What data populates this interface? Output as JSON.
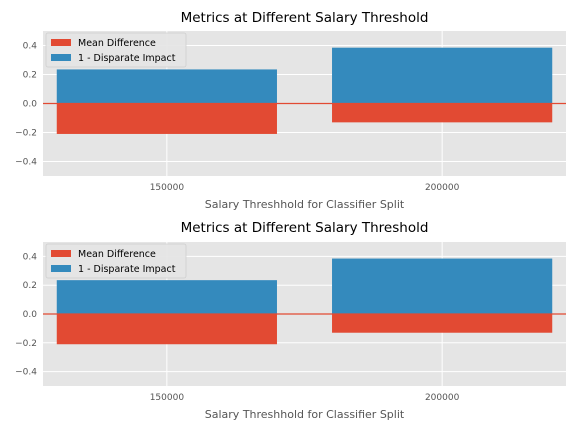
{
  "colors": {
    "background": "#ffffff",
    "plot_background": "#e5e5e5",
    "grid": "#ffffff",
    "zero_line": "#e24a33",
    "series_mean_difference": "#e24a33",
    "series_disparate_impact": "#348abd"
  },
  "chart_data": [
    {
      "type": "bar",
      "title": "Metrics at Different Salary Threshold",
      "xlabel": "Salary Threshhold for Classifier Split",
      "ylabel": "",
      "categories": [
        "150000",
        "200000"
      ],
      "x": [
        150000,
        200000
      ],
      "xlim": [
        127500,
        222500
      ],
      "ylim": [
        -0.5,
        0.5
      ],
      "yticks": [
        -0.4,
        -0.2,
        0.0,
        0.2,
        0.4
      ],
      "ytick_labels": [
        "−0.4",
        "−0.2",
        "0.0",
        "0.2",
        "0.4"
      ],
      "bar_width": 40000,
      "zero_line": 0,
      "grid": true,
      "legend_position": "top-left",
      "series": [
        {
          "name": "Mean Difference",
          "values": [
            -0.21,
            -0.13
          ]
        },
        {
          "name": "1 - Disparate Impact",
          "values": [
            0.235,
            0.385
          ]
        }
      ]
    },
    {
      "type": "bar",
      "title": "Metrics at Different Salary Threshold",
      "xlabel": "Salary Threshhold for Classifier Split",
      "ylabel": "",
      "categories": [
        "150000",
        "200000"
      ],
      "x": [
        150000,
        200000
      ],
      "xlim": [
        127500,
        222500
      ],
      "ylim": [
        -0.5,
        0.5
      ],
      "yticks": [
        -0.4,
        -0.2,
        0.0,
        0.2,
        0.4
      ],
      "ytick_labels": [
        "−0.4",
        "−0.2",
        "0.0",
        "0.2",
        "0.4"
      ],
      "bar_width": 40000,
      "zero_line": 0,
      "grid": true,
      "legend_position": "top-left",
      "series": [
        {
          "name": "Mean Difference",
          "values": [
            -0.21,
            -0.13
          ]
        },
        {
          "name": "1 - Disparate Impact",
          "values": [
            0.235,
            0.385
          ]
        }
      ]
    }
  ]
}
